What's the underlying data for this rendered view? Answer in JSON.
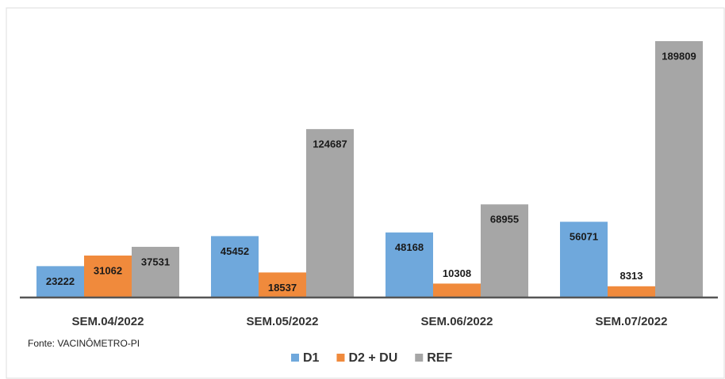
{
  "chart_data": {
    "type": "bar",
    "categories": [
      "SEM.04/2022",
      "SEM.05/2022",
      "SEM.06/2022",
      "SEM.07/2022"
    ],
    "series": [
      {
        "name": "D1",
        "color": "#6fa8dc",
        "values": [
          23222,
          45452,
          48168,
          56071
        ]
      },
      {
        "name": "D2 + DU",
        "color": "#f08a3c",
        "values": [
          31062,
          18537,
          10308,
          8313
        ]
      },
      {
        "name": "REF",
        "color": "#a6a6a6",
        "values": [
          37531,
          124687,
          68955,
          189809
        ]
      }
    ],
    "source": "Fonte: VACINÔMETRO-PI"
  }
}
